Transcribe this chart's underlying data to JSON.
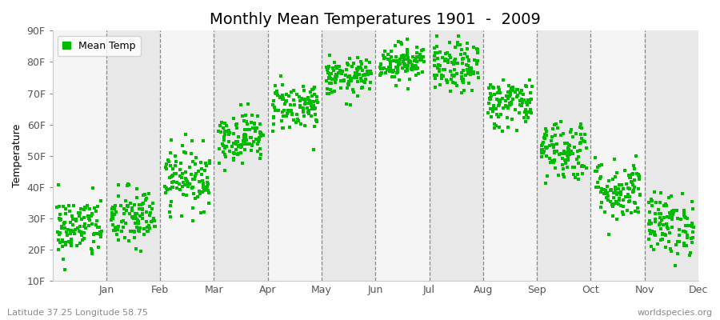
{
  "title": "Monthly Mean Temperatures 1901  -  2009",
  "ylabel": "Temperature",
  "xlabel_labels": [
    "Jan",
    "Feb",
    "Mar",
    "Apr",
    "May",
    "Jun",
    "Jul",
    "Aug",
    "Sep",
    "Oct",
    "Nov",
    "Dec"
  ],
  "ytick_labels": [
    "10F",
    "20F",
    "30F",
    "40F",
    "50F",
    "60F",
    "70F",
    "80F",
    "90F"
  ],
  "ytick_values": [
    10,
    20,
    30,
    40,
    50,
    60,
    70,
    80,
    90
  ],
  "ylim": [
    10,
    90
  ],
  "dot_color": "#00bb00",
  "dot_size": 5,
  "band_color_light": "#f5f5f5",
  "band_color_dark": "#e8e8e8",
  "fig_bg_color": "#ffffff",
  "legend_label": "Mean Temp",
  "footer_left": "Latitude 37.25 Longitude 58.75",
  "footer_right": "worldspecies.org",
  "monthly_means_F": [
    27,
    30,
    43,
    56,
    66,
    75,
    80,
    78,
    67,
    52,
    39,
    28
  ],
  "monthly_std_F": [
    5,
    5,
    5,
    4,
    4,
    3,
    3,
    4,
    4,
    5,
    5,
    5
  ],
  "years": 109,
  "title_fontsize": 14,
  "axis_fontsize": 9,
  "footer_fontsize": 8
}
